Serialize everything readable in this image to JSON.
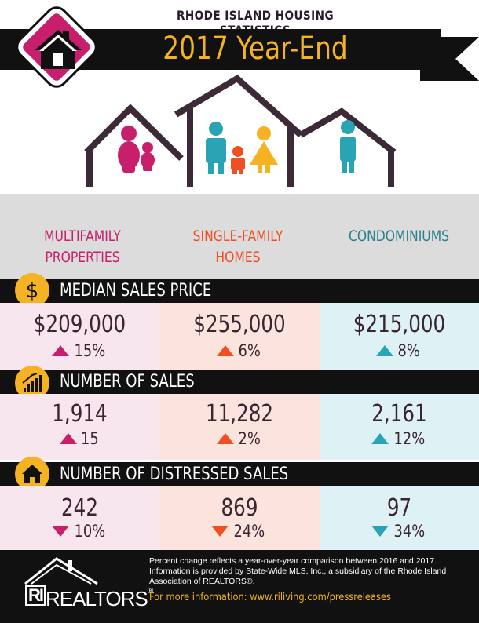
{
  "header": {
    "subtitle": "RHODE ISLAND HOUSING STATISTICS",
    "title": "2017 Year-End"
  },
  "colors": {
    "multifamily": "#c71f6b",
    "single_family": "#f04e23",
    "condominiums": "#2aa3b5",
    "accent": "#f5b323",
    "dark": "#111111"
  },
  "categories": {
    "multifamily": [
      "MULTIFAMILY",
      "PROPERTIES"
    ],
    "single_family": [
      "SINGLE-FAMILY",
      "HOMES"
    ],
    "condominiums": [
      "CONDOMINIUMS"
    ]
  },
  "sections": [
    {
      "label": "MEDIAN SALES PRICE",
      "icon": "dollar-icon",
      "values": [
        {
          "value": "$209,000",
          "change": "15%",
          "direction": "up"
        },
        {
          "value": "$255,000",
          "change": "6%",
          "direction": "up"
        },
        {
          "value": "$215,000",
          "change": "8%",
          "direction": "up"
        }
      ]
    },
    {
      "label": "NUMBER OF SALES",
      "icon": "bar-chart-icon",
      "values": [
        {
          "value": "1,914",
          "change": "15",
          "direction": "up"
        },
        {
          "value": "11,282",
          "change": "2%",
          "direction": "up"
        },
        {
          "value": "2,161",
          "change": "12%",
          "direction": "up"
        }
      ]
    },
    {
      "label": "NUMBER OF DISTRESSED SALES",
      "icon": "house-icon",
      "values": [
        {
          "value": "242",
          "change": "10%",
          "direction": "down"
        },
        {
          "value": "869",
          "change": "24%",
          "direction": "down"
        },
        {
          "value": "97",
          "change": "34%",
          "direction": "down"
        }
      ]
    }
  ],
  "footer": {
    "logo_box": "RI",
    "logo_text": "REALTORS",
    "registered": "®",
    "note": "Percent change reflects a year-over-year comparison between 2016 and 2017. Information is provided by State-Wide MLS, Inc., a subsidiary of the Rhode Island Association of REALTORS®.",
    "more_info": "For more information: www.riliving.com/pressreleases"
  }
}
